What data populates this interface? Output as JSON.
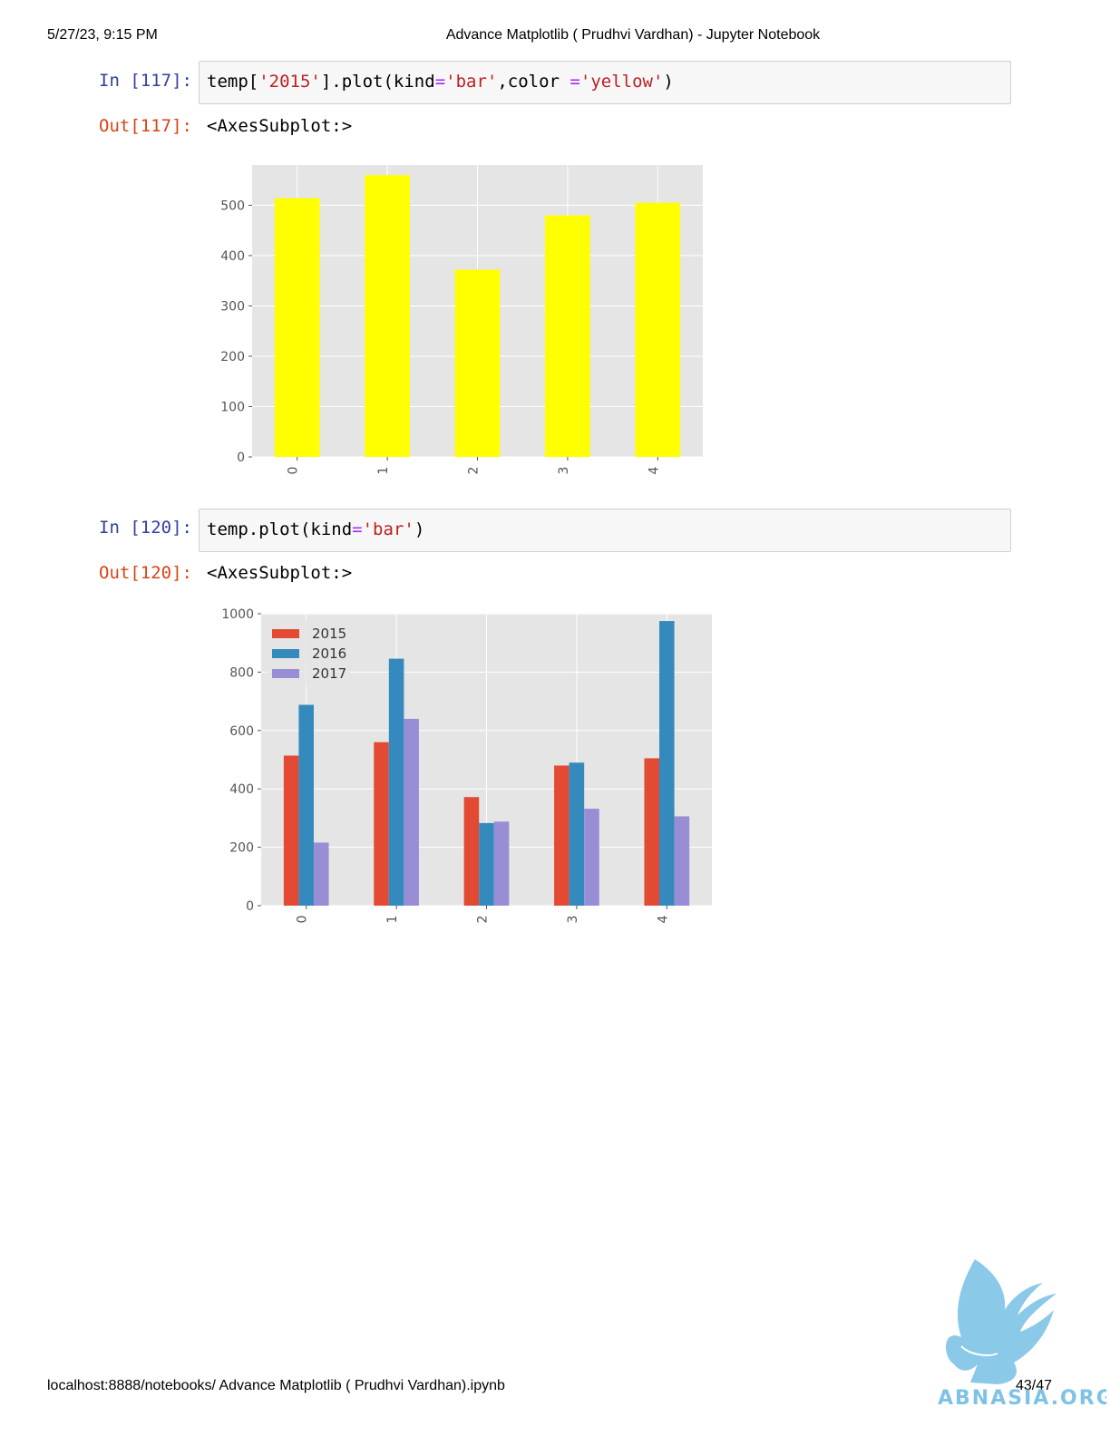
{
  "header": {
    "datetime": "5/27/23, 9:15 PM",
    "title": "Advance Matplotlib ( Prudhvi Vardhan) - Jupyter Notebook"
  },
  "footer": {
    "path": "localhost:8888/notebooks/ Advance Matplotlib ( Prudhvi Vardhan).ipynb",
    "page": "43/47"
  },
  "cells": [
    {
      "in_prompt": "In [117]:",
      "code_tokens": [
        "temp[",
        "'2015'",
        "].plot(kind",
        "=",
        "'bar'",
        ",color ",
        "=",
        "'yellow'",
        ")"
      ],
      "out_prompt": "Out[117]:",
      "out_text": "<AxesSubplot:>"
    },
    {
      "in_prompt": "In [120]:",
      "code_tokens": [
        "temp.plot(kind",
        "=",
        "'bar'",
        ")"
      ],
      "out_prompt": "Out[120]:",
      "out_text": "<AxesSubplot:>"
    }
  ],
  "chart_data": [
    {
      "type": "bar",
      "categories": [
        "0",
        "1",
        "2",
        "3",
        "4"
      ],
      "series": [
        {
          "values": [
            514,
            560,
            372,
            480,
            505
          ],
          "color": "#ffff00"
        }
      ],
      "ylim": [
        0,
        580
      ],
      "yticks": [
        0,
        100,
        200,
        300,
        400,
        500
      ],
      "grid": true,
      "background": "#e5e5e5"
    },
    {
      "type": "bar",
      "categories": [
        "0",
        "1",
        "2",
        "3",
        "4"
      ],
      "series": [
        {
          "name": "2015",
          "values": [
            514,
            560,
            372,
            480,
            505
          ],
          "color": "#e24a33"
        },
        {
          "name": "2016",
          "values": [
            688,
            846,
            283,
            490,
            975
          ],
          "color": "#348abd"
        },
        {
          "name": "2017",
          "values": [
            216,
            640,
            288,
            332,
            306
          ],
          "color": "#988ed5"
        }
      ],
      "ylim": [
        0,
        1000
      ],
      "yticks": [
        0,
        200,
        400,
        600,
        800,
        1000
      ],
      "legend": "top-left",
      "grid": true,
      "background": "#e5e5e5"
    }
  ],
  "watermark": {
    "text": "ABNASIA.ORG",
    "color": "#7ec3e6"
  }
}
